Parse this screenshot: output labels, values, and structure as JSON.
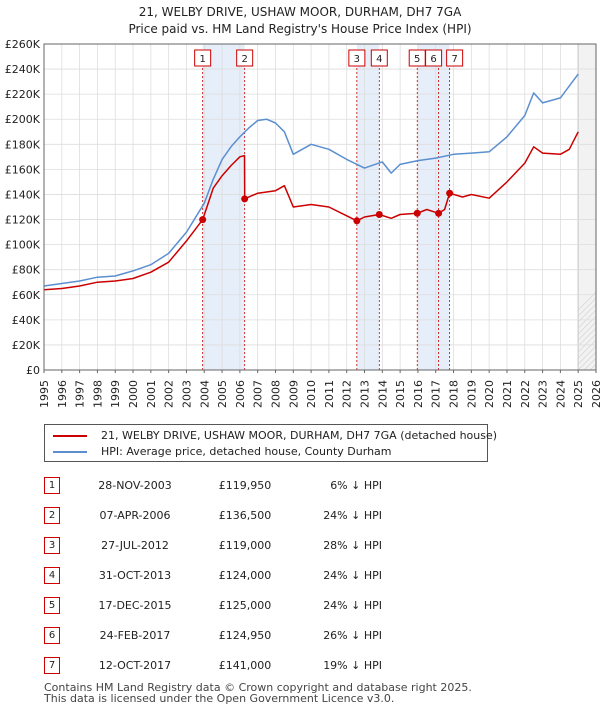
{
  "chart_data": {
    "type": "line",
    "title": "21, WELBY DRIVE, USHAW MOOR, DURHAM, DH7 7GA",
    "subtitle": "Price paid vs. HM Land Registry's House Price Index (HPI)",
    "xlim": [
      1995,
      2026
    ],
    "ylim": [
      0,
      260000
    ],
    "x_ticks": [
      "1995",
      "1996",
      "1997",
      "1998",
      "1999",
      "2000",
      "2001",
      "2002",
      "2003",
      "2004",
      "2005",
      "2006",
      "2007",
      "2008",
      "2009",
      "2010",
      "2011",
      "2012",
      "2013",
      "2014",
      "2015",
      "2016",
      "2017",
      "2018",
      "2019",
      "2020",
      "2021",
      "2022",
      "2023",
      "2024",
      "2025",
      "2026"
    ],
    "y_ticks": [
      "£0",
      "£20K",
      "£40K",
      "£60K",
      "£80K",
      "£100K",
      "£120K",
      "£140K",
      "£160K",
      "£180K",
      "£200K",
      "£220K",
      "£240K",
      "£260K"
    ],
    "shaded_ranges": [
      [
        2003.91,
        2006.27
      ],
      [
        2012.57,
        2013.83
      ],
      [
        2015.96,
        2017.78
      ]
    ],
    "forecast_start": 2025.0,
    "series": [
      {
        "name": "21, WELBY DRIVE, USHAW MOOR, DURHAM, DH7 7GA (detached house)",
        "color": "#cc0000",
        "x": [
          1995.0,
          1996.0,
          1997.0,
          1998.0,
          1999.0,
          2000.0,
          2001.0,
          2002.0,
          2003.0,
          2003.91,
          2004.5,
          2005.0,
          2005.5,
          2006.0,
          2006.26,
          2006.27,
          2007.0,
          2008.0,
          2008.5,
          2009.0,
          2010.0,
          2011.0,
          2012.0,
          2012.57,
          2013.0,
          2013.83,
          2014.5,
          2015.0,
          2015.96,
          2016.5,
          2017.16,
          2017.5,
          2017.78,
          2018.5,
          2019.0,
          2020.0,
          2021.0,
          2022.0,
          2022.5,
          2023.0,
          2024.0,
          2024.5,
          2025.0
        ],
        "values": [
          64000,
          65000,
          67000,
          70000,
          71000,
          73000,
          78000,
          86000,
          103000,
          119950,
          145000,
          155000,
          163000,
          170000,
          171000,
          136500,
          141000,
          143000,
          147000,
          130000,
          132000,
          130000,
          123000,
          119000,
          122000,
          124000,
          121000,
          124000,
          125000,
          128000,
          124950,
          128000,
          141000,
          138000,
          140000,
          137000,
          150000,
          165000,
          178000,
          173000,
          172000,
          176000,
          190000
        ]
      },
      {
        "name": "HPI: Average price, detached house, County Durham",
        "color": "#5b8fd0",
        "x": [
          1995.0,
          1996.0,
          1997.0,
          1998.0,
          1999.0,
          2000.0,
          2001.0,
          2002.0,
          2003.0,
          2004.0,
          2004.5,
          2005.0,
          2005.5,
          2006.0,
          2006.5,
          2007.0,
          2007.5,
          2008.0,
          2008.5,
          2009.0,
          2009.5,
          2010.0,
          2011.0,
          2012.0,
          2013.0,
          2014.0,
          2014.5,
          2015.0,
          2016.0,
          2017.0,
          2018.0,
          2019.0,
          2020.0,
          2021.0,
          2022.0,
          2022.5,
          2023.0,
          2024.0,
          2025.0
        ],
        "values": [
          67000,
          69000,
          71000,
          74000,
          75000,
          79000,
          84000,
          93000,
          110000,
          133000,
          152000,
          168000,
          178000,
          186000,
          193000,
          199000,
          200000,
          197000,
          190000,
          172000,
          176000,
          180000,
          176000,
          168000,
          161000,
          166000,
          157000,
          164000,
          167000,
          169000,
          172000,
          173000,
          174000,
          186000,
          203000,
          221000,
          213000,
          217000,
          236000
        ]
      }
    ],
    "markers": [
      {
        "label": "1",
        "x": 2003.91,
        "value": 119950
      },
      {
        "label": "2",
        "x": 2006.27,
        "value": 136500
      },
      {
        "label": "3",
        "x": 2012.57,
        "value": 119000
      },
      {
        "label": "4",
        "x": 2013.83,
        "value": 124000
      },
      {
        "label": "5",
        "x": 2015.96,
        "value": 125000
      },
      {
        "label": "6",
        "x": 2017.16,
        "value": 124950
      },
      {
        "label": "7",
        "x": 2017.78,
        "value": 141000
      }
    ]
  },
  "legend": {
    "property_label": "21, WELBY DRIVE, USHAW MOOR, DURHAM, DH7 7GA (detached house)",
    "hpi_label": "HPI: Average price, detached house, County Durham",
    "property_color": "#cc0000",
    "hpi_color": "#5b8fd0"
  },
  "sales": [
    {
      "num": "1",
      "date": "28-NOV-2003",
      "price": "£119,950",
      "pct": "6% ↓ HPI"
    },
    {
      "num": "2",
      "date": "07-APR-2006",
      "price": "£136,500",
      "pct": "24% ↓ HPI"
    },
    {
      "num": "3",
      "date": "27-JUL-2012",
      "price": "£119,000",
      "pct": "28% ↓ HPI"
    },
    {
      "num": "4",
      "date": "31-OCT-2013",
      "price": "£124,000",
      "pct": "24% ↓ HPI"
    },
    {
      "num": "5",
      "date": "17-DEC-2015",
      "price": "£125,000",
      "pct": "24% ↓ HPI"
    },
    {
      "num": "6",
      "date": "24-FEB-2017",
      "price": "£124,950",
      "pct": "26% ↓ HPI"
    },
    {
      "num": "7",
      "date": "12-OCT-2017",
      "price": "£141,000",
      "pct": "19% ↓ HPI"
    }
  ],
  "footer": {
    "line1": "Contains HM Land Registry data © Crown copyright and database right 2025.",
    "line2": "This data is licensed under the Open Government Licence v3.0."
  }
}
